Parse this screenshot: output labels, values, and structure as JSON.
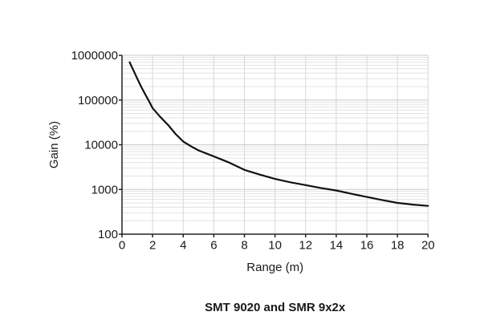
{
  "page": {
    "background": "#ffffff"
  },
  "chart_data": {
    "type": "line",
    "title": "SMT 9020 and SMR 9x2x",
    "xlabel": "Range (m)",
    "ylabel": "Gain (%)",
    "xlim": [
      0,
      20
    ],
    "x_ticks": [
      0,
      2,
      4,
      6,
      8,
      10,
      12,
      14,
      16,
      18,
      20
    ],
    "x_tick_labels": [
      "0",
      "2",
      "4",
      "6",
      "8",
      "10",
      "12",
      "14",
      "16",
      "18",
      "20"
    ],
    "yscale": "log",
    "ylim": [
      100,
      1000000
    ],
    "y_ticks": [
      100,
      1000,
      10000,
      100000,
      1000000
    ],
    "y_tick_labels": [
      "100",
      "1000",
      "10000",
      "100000",
      "1000000"
    ],
    "grid": {
      "horizontal": "log major and minor gridlines",
      "vertical": "major gridlines every 2 m",
      "visible": true
    },
    "legend": "none",
    "series": [
      {
        "name": "gain-curve",
        "color": "#111111",
        "points": [
          [
            0.5,
            700000
          ],
          [
            0.75,
            460000
          ],
          [
            1,
            300000
          ],
          [
            1.25,
            200000
          ],
          [
            1.5,
            138000
          ],
          [
            1.75,
            96000
          ],
          [
            2,
            66000
          ],
          [
            2.5,
            42000
          ],
          [
            3,
            28000
          ],
          [
            3.5,
            17500
          ],
          [
            4,
            11800
          ],
          [
            4.5,
            9300
          ],
          [
            5,
            7500
          ],
          [
            5.5,
            6400
          ],
          [
            6,
            5500
          ],
          [
            6.5,
            4700
          ],
          [
            7,
            4000
          ],
          [
            7.5,
            3300
          ],
          [
            8,
            2750
          ],
          [
            9,
            2150
          ],
          [
            10,
            1720
          ],
          [
            11,
            1450
          ],
          [
            12,
            1250
          ],
          [
            13,
            1080
          ],
          [
            14,
            950
          ],
          [
            15,
            800
          ],
          [
            16,
            680
          ],
          [
            17,
            580
          ],
          [
            18,
            500
          ],
          [
            19,
            460
          ],
          [
            20,
            430
          ]
        ]
      }
    ]
  },
  "style": {
    "grid_major_color": "#c9c9c9",
    "grid_minor_color": "#e3e3e3",
    "grid_vertical_color": "#d8d8d8",
    "axis_color": "#222222",
    "text_color": "#1a1a1a",
    "curve_color": "#111111"
  }
}
